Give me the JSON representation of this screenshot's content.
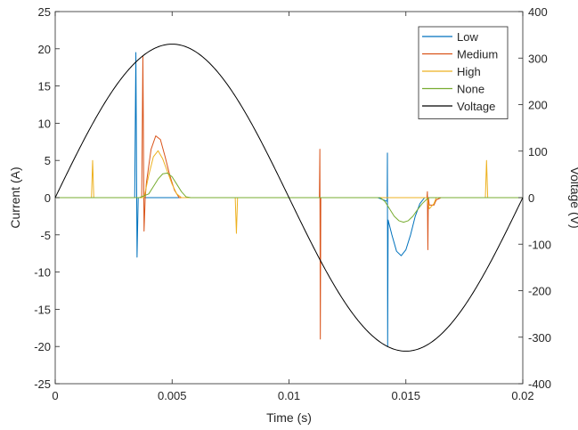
{
  "chart_data": {
    "type": "line",
    "xlabel": "Time (s)",
    "ylabel_left": "Current (A)",
    "ylabel_right": "Voltage (V)",
    "xlim": [
      0,
      0.02
    ],
    "ylim_left": [
      -25,
      25
    ],
    "ylim_right": [
      -400,
      400
    ],
    "x_ticks": [
      0,
      0.005,
      0.01,
      0.015,
      0.02
    ],
    "x_tick_labels": [
      "0",
      "0.005",
      "0.01",
      "0.015",
      "0.02"
    ],
    "y_left_ticks": [
      25,
      20,
      15,
      10,
      5,
      0,
      -5,
      -10,
      -15,
      -20,
      -25
    ],
    "y_left_tick_labels": [
      "25",
      "20",
      "15",
      "10",
      "5",
      "0",
      "-5",
      "-10",
      "-15",
      "-20",
      "-25"
    ],
    "y_right_ticks": [
      400,
      300,
      200,
      100,
      0,
      -100,
      -200,
      -300,
      -400
    ],
    "y_right_tick_labels": [
      "400",
      "300",
      "200",
      "100",
      "0",
      "-100",
      "-200",
      "-300",
      "-400"
    ],
    "grid": false,
    "legend_position": "top-right",
    "series": [
      {
        "name": "Low",
        "axis": "left",
        "color": "#0072BD",
        "points": [
          [
            0,
            0
          ],
          [
            0.0034,
            0
          ],
          [
            0.00345,
            19.5
          ],
          [
            0.0035,
            -8
          ],
          [
            0.00355,
            0
          ],
          [
            0.0138,
            0
          ],
          [
            0.0142,
            -0.5
          ],
          [
            0.01421,
            6
          ],
          [
            0.01422,
            -20
          ],
          [
            0.01424,
            -3
          ],
          [
            0.0144,
            -5
          ],
          [
            0.0146,
            -7.2
          ],
          [
            0.0148,
            -7.8
          ],
          [
            0.015,
            -7
          ],
          [
            0.0152,
            -5
          ],
          [
            0.0154,
            -2.5
          ],
          [
            0.0156,
            -0.8
          ],
          [
            0.0158,
            0
          ],
          [
            0.02,
            0
          ]
        ]
      },
      {
        "name": "Medium",
        "axis": "left",
        "color": "#D95319",
        "points": [
          [
            0,
            0
          ],
          [
            0.0037,
            0
          ],
          [
            0.00375,
            19
          ],
          [
            0.0038,
            -4.5
          ],
          [
            0.00385,
            0
          ],
          [
            0.0039,
            2
          ],
          [
            0.0041,
            6.5
          ],
          [
            0.0043,
            8.3
          ],
          [
            0.0045,
            7.8
          ],
          [
            0.0047,
            5.5
          ],
          [
            0.0049,
            3
          ],
          [
            0.0051,
            1
          ],
          [
            0.0053,
            0
          ],
          [
            0.0113,
            0
          ],
          [
            0.01132,
            6.5
          ],
          [
            0.01134,
            -19
          ],
          [
            0.01136,
            0
          ],
          [
            0.0159,
            0
          ],
          [
            0.01592,
            0.8
          ],
          [
            0.01594,
            -7
          ],
          [
            0.01596,
            0
          ],
          [
            0.016,
            -1
          ],
          [
            0.0162,
            -1
          ],
          [
            0.0163,
            -0.3
          ],
          [
            0.0165,
            0
          ],
          [
            0.02,
            0
          ]
        ]
      },
      {
        "name": "High",
        "axis": "left",
        "color": "#EDB120",
        "points": [
          [
            0,
            0
          ],
          [
            0.00155,
            0
          ],
          [
            0.0016,
            5
          ],
          [
            0.00165,
            0
          ],
          [
            0.0038,
            0
          ],
          [
            0.004,
            3
          ],
          [
            0.0042,
            5.5
          ],
          [
            0.0044,
            6.3
          ],
          [
            0.0046,
            5.2
          ],
          [
            0.0048,
            3.5
          ],
          [
            0.005,
            1.8
          ],
          [
            0.0052,
            0.5
          ],
          [
            0.0054,
            0
          ],
          [
            0.0077,
            0
          ],
          [
            0.00775,
            -4.8
          ],
          [
            0.0078,
            0
          ],
          [
            0.0159,
            0
          ],
          [
            0.016,
            -1.5
          ],
          [
            0.0162,
            -0.8
          ],
          [
            0.0163,
            0
          ],
          [
            0.0184,
            0
          ],
          [
            0.01845,
            5
          ],
          [
            0.0185,
            0
          ],
          [
            0.02,
            0
          ]
        ]
      },
      {
        "name": "None",
        "axis": "left",
        "color": "#77AC30",
        "points": [
          [
            0,
            0
          ],
          [
            0.0036,
            0
          ],
          [
            0.004,
            0.5
          ],
          [
            0.0042,
            1.5
          ],
          [
            0.0044,
            2.5
          ],
          [
            0.0046,
            3.2
          ],
          [
            0.0048,
            3.3
          ],
          [
            0.005,
            2.8
          ],
          [
            0.0052,
            1.8
          ],
          [
            0.0054,
            0.8
          ],
          [
            0.0056,
            0.1
          ],
          [
            0.0058,
            0
          ],
          [
            0.0139,
            0
          ],
          [
            0.0141,
            -0.5
          ],
          [
            0.0143,
            -1.5
          ],
          [
            0.0145,
            -2.5
          ],
          [
            0.0147,
            -3.1
          ],
          [
            0.0149,
            -3.3
          ],
          [
            0.0151,
            -3.1
          ],
          [
            0.0153,
            -2.5
          ],
          [
            0.0155,
            -1.6
          ],
          [
            0.0157,
            -0.8
          ],
          [
            0.0159,
            -0.2
          ],
          [
            0.016,
            0
          ],
          [
            0.02,
            0
          ]
        ]
      },
      {
        "name": "Voltage",
        "axis": "right",
        "color": "#000000",
        "function": "330*sin(2*pi*50*t)",
        "amplitude": 330,
        "frequency": 50
      }
    ]
  }
}
